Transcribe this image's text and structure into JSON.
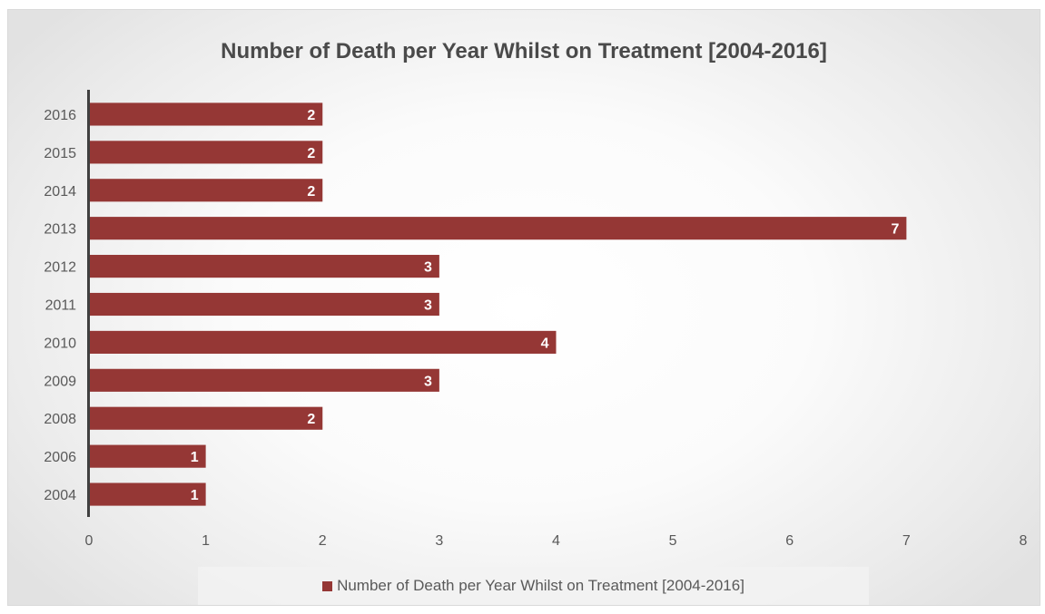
{
  "chart_data": {
    "type": "bar",
    "orientation": "horizontal",
    "title": "Number of Death per Year Whilst on Treatment [2004-2016]",
    "categories": [
      "2016",
      "2015",
      "2014",
      "2013",
      "2012",
      "2011",
      "2010",
      "2009",
      "2008",
      "2006",
      "2004"
    ],
    "series": [
      {
        "name": "Number of Death per Year Whilst on Treatment [2004-2016]",
        "values": [
          2,
          2,
          2,
          7,
          3,
          3,
          4,
          3,
          2,
          1,
          1
        ],
        "color": "#953735"
      }
    ],
    "xlim": [
      0,
      8
    ],
    "x_ticks": [
      0,
      1,
      2,
      3,
      4,
      5,
      6,
      7,
      8
    ],
    "data_labels": true,
    "grid": false,
    "legend_position": "bottom"
  }
}
